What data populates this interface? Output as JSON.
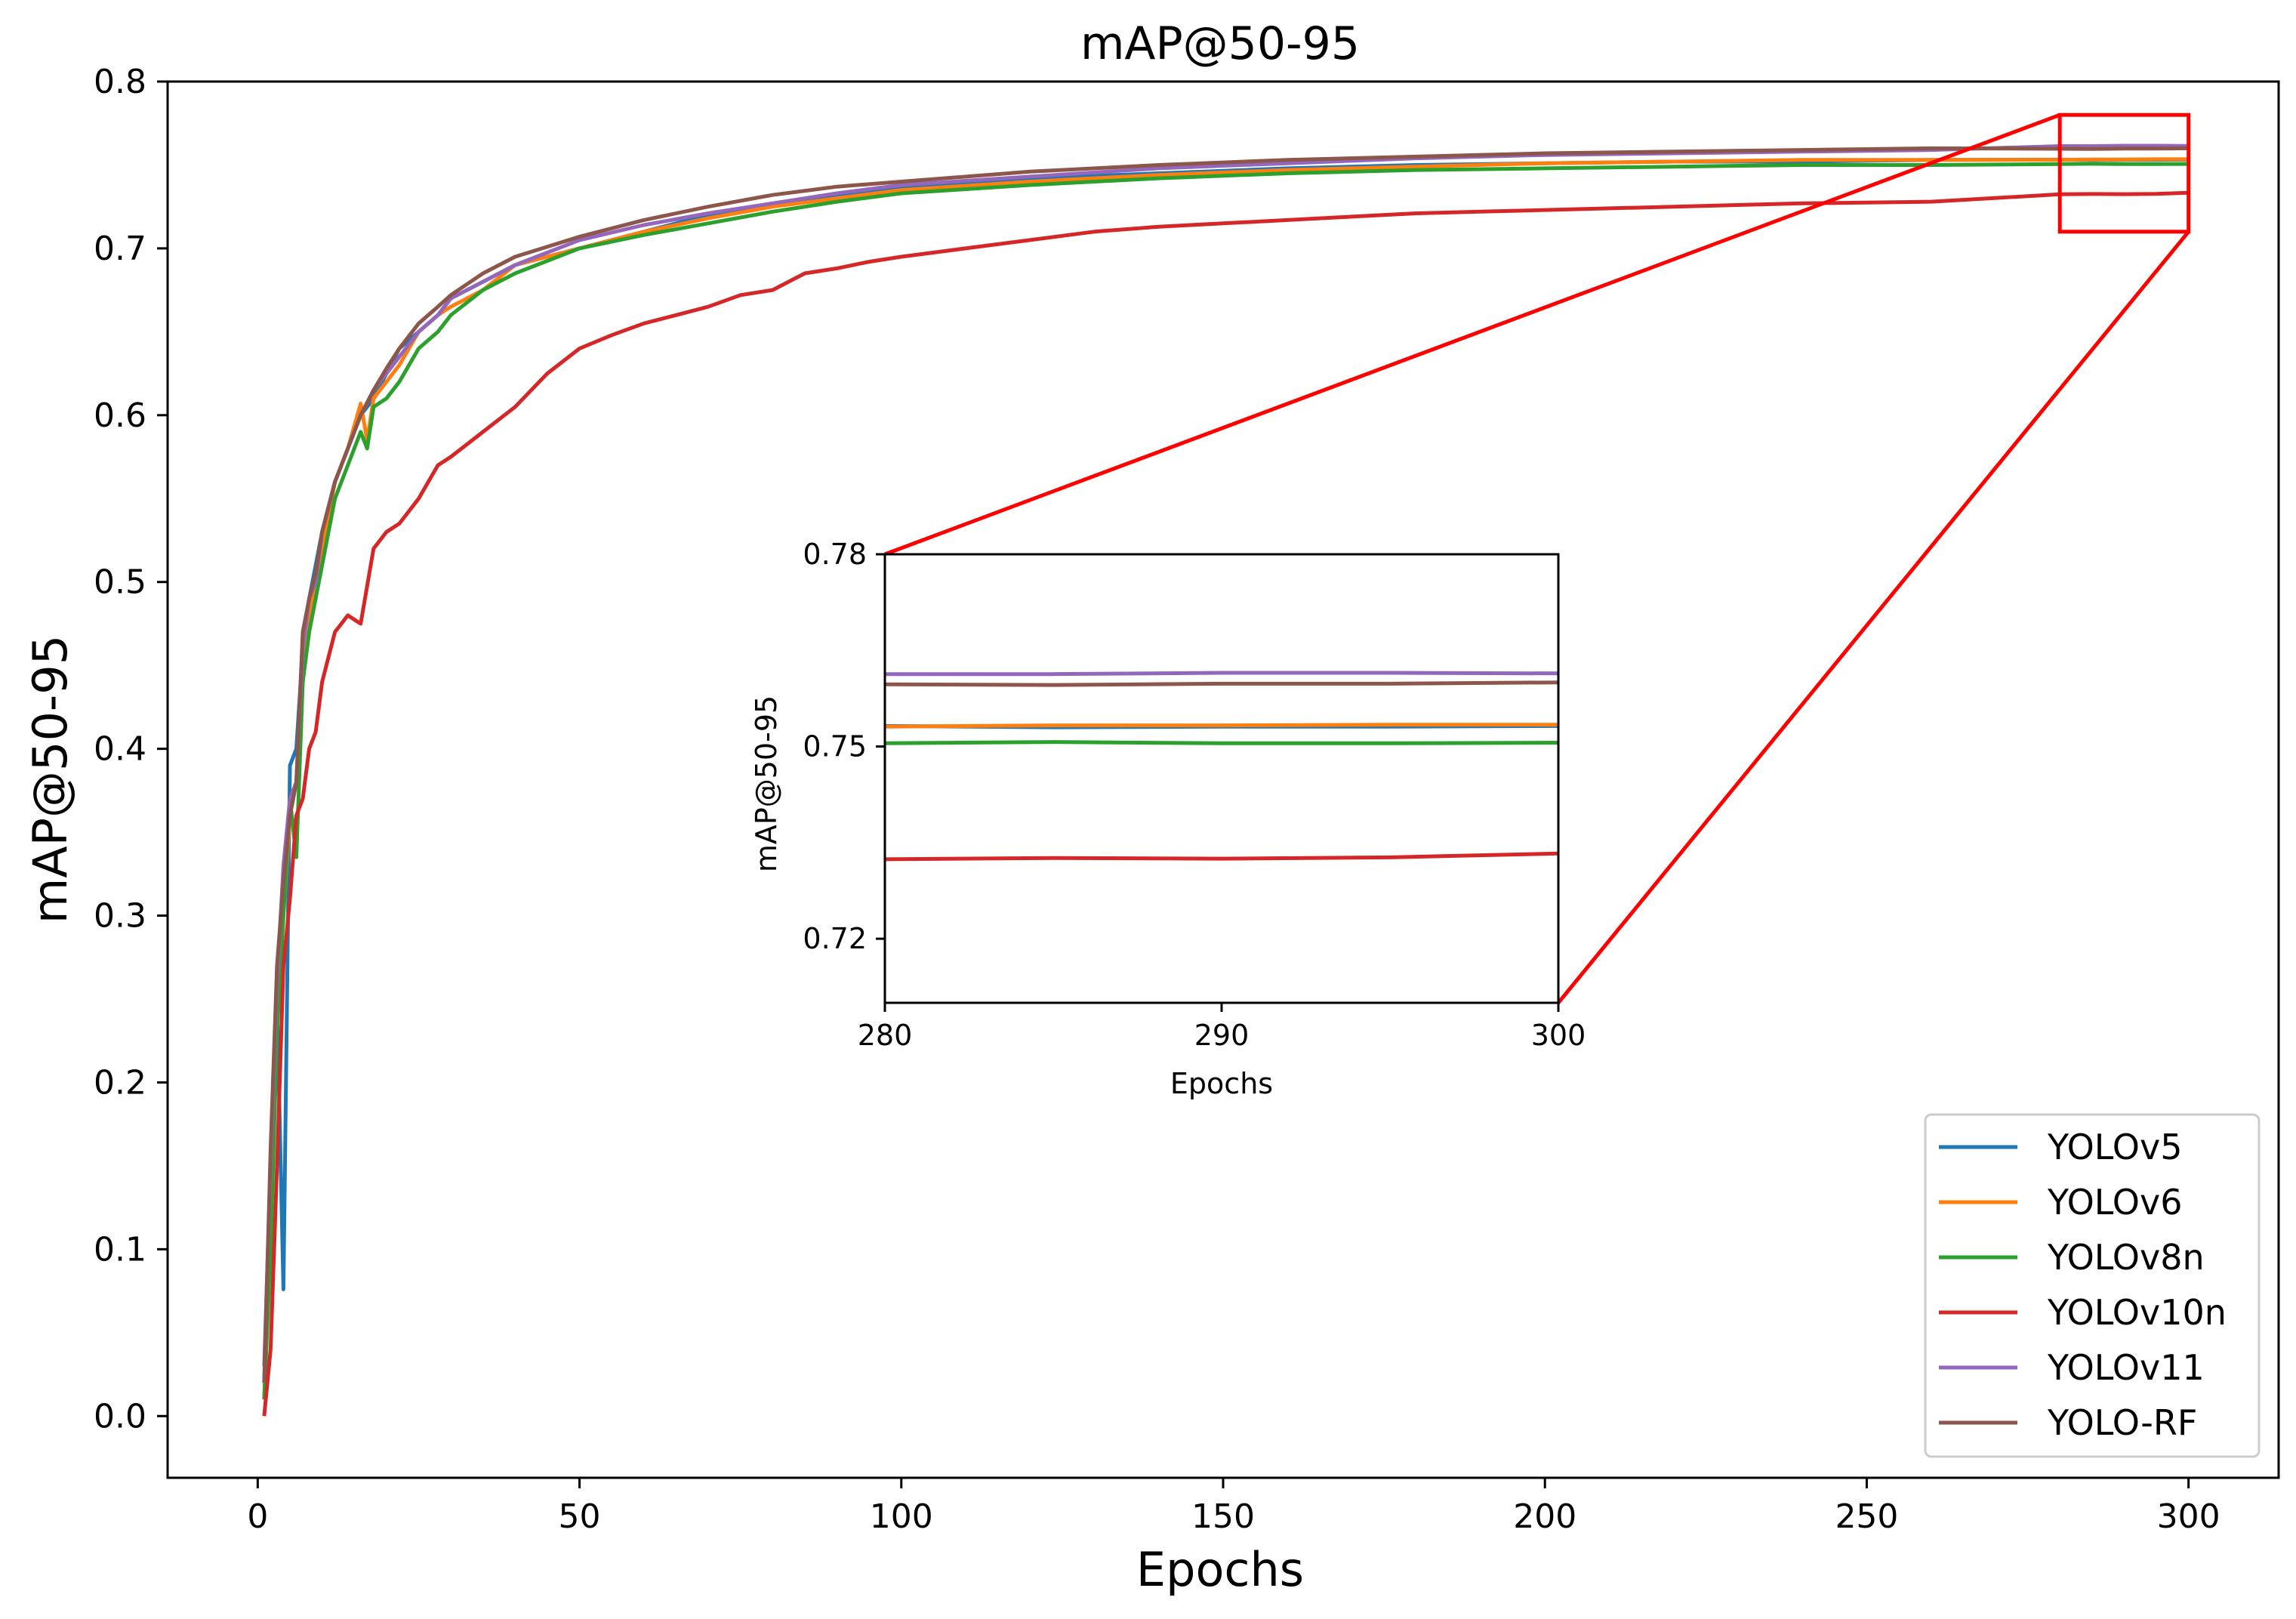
{
  "chart_data": {
    "type": "line",
    "title": "mAP@50-95",
    "xlabel": "Epochs",
    "ylabel": "mAP@50-95",
    "xlim": [
      -14,
      314
    ],
    "ylim": [
      -0.037,
      0.8
    ],
    "xticks": [
      0,
      50,
      100,
      150,
      200,
      250,
      300
    ],
    "yticks": [
      0.0,
      0.1,
      0.2,
      0.3,
      0.4,
      0.5,
      0.6,
      0.7,
      0.8
    ],
    "grid": false,
    "legend_position": "lower-right",
    "series": [
      {
        "name": "YOLOv5",
        "color": "#1f77b4",
        "points": [
          [
            1,
            0.02
          ],
          [
            2,
            0.14
          ],
          [
            3,
            0.25
          ],
          [
            4,
            0.076
          ],
          [
            5,
            0.39
          ],
          [
            6,
            0.4
          ],
          [
            7,
            0.46
          ],
          [
            8,
            0.49
          ],
          [
            9,
            0.51
          ],
          [
            10,
            0.53
          ],
          [
            12,
            0.56
          ],
          [
            14,
            0.58
          ],
          [
            16,
            0.6
          ],
          [
            18,
            0.61
          ],
          [
            20,
            0.625
          ],
          [
            22,
            0.64
          ],
          [
            25,
            0.65
          ],
          [
            28,
            0.66
          ],
          [
            30,
            0.67
          ],
          [
            35,
            0.68
          ],
          [
            40,
            0.69
          ],
          [
            50,
            0.7
          ],
          [
            60,
            0.71
          ],
          [
            70,
            0.72
          ],
          [
            80,
            0.727
          ],
          [
            90,
            0.732
          ],
          [
            100,
            0.737
          ],
          [
            120,
            0.742
          ],
          [
            140,
            0.745
          ],
          [
            160,
            0.748
          ],
          [
            180,
            0.75
          ],
          [
            200,
            0.751
          ],
          [
            220,
            0.752
          ],
          [
            240,
            0.752
          ],
          [
            260,
            0.753
          ],
          [
            280,
            0.7532
          ],
          [
            285,
            0.753
          ],
          [
            290,
            0.7531
          ],
          [
            295,
            0.7531
          ],
          [
            300,
            0.7532
          ]
        ]
      },
      {
        "name": "YOLOv6",
        "color": "#ff7f0e",
        "points": [
          [
            1,
            0.01
          ],
          [
            2,
            0.12
          ],
          [
            3,
            0.24
          ],
          [
            4,
            0.3
          ],
          [
            5,
            0.36
          ],
          [
            6,
            0.38
          ],
          [
            7,
            0.45
          ],
          [
            8,
            0.48
          ],
          [
            9,
            0.5
          ],
          [
            10,
            0.52
          ],
          [
            12,
            0.56
          ],
          [
            14,
            0.58
          ],
          [
            16,
            0.607
          ],
          [
            17,
            0.585
          ],
          [
            18,
            0.61
          ],
          [
            20,
            0.62
          ],
          [
            22,
            0.63
          ],
          [
            25,
            0.65
          ],
          [
            28,
            0.66
          ],
          [
            30,
            0.665
          ],
          [
            35,
            0.675
          ],
          [
            40,
            0.69
          ],
          [
            50,
            0.7
          ],
          [
            60,
            0.71
          ],
          [
            70,
            0.718
          ],
          [
            80,
            0.725
          ],
          [
            90,
            0.73
          ],
          [
            100,
            0.735
          ],
          [
            120,
            0.74
          ],
          [
            140,
            0.744
          ],
          [
            160,
            0.747
          ],
          [
            180,
            0.749
          ],
          [
            200,
            0.751
          ],
          [
            220,
            0.752
          ],
          [
            240,
            0.753
          ],
          [
            260,
            0.753
          ],
          [
            280,
            0.7531
          ],
          [
            285,
            0.7533
          ],
          [
            290,
            0.7533
          ],
          [
            295,
            0.7534
          ],
          [
            300,
            0.7534
          ]
        ]
      },
      {
        "name": "YOLOv8n",
        "color": "#2ca02c",
        "points": [
          [
            1,
            0.01
          ],
          [
            2,
            0.1
          ],
          [
            3,
            0.23
          ],
          [
            4,
            0.3
          ],
          [
            5,
            0.37
          ],
          [
            6,
            0.335
          ],
          [
            7,
            0.44
          ],
          [
            8,
            0.47
          ],
          [
            9,
            0.49
          ],
          [
            10,
            0.51
          ],
          [
            12,
            0.55
          ],
          [
            14,
            0.57
          ],
          [
            16,
            0.59
          ],
          [
            17,
            0.58
          ],
          [
            18,
            0.605
          ],
          [
            20,
            0.61
          ],
          [
            22,
            0.62
          ],
          [
            25,
            0.64
          ],
          [
            28,
            0.65
          ],
          [
            30,
            0.66
          ],
          [
            35,
            0.675
          ],
          [
            40,
            0.685
          ],
          [
            50,
            0.7
          ],
          [
            60,
            0.708
          ],
          [
            70,
            0.715
          ],
          [
            80,
            0.722
          ],
          [
            90,
            0.728
          ],
          [
            100,
            0.733
          ],
          [
            120,
            0.738
          ],
          [
            140,
            0.742
          ],
          [
            160,
            0.745
          ],
          [
            180,
            0.747
          ],
          [
            200,
            0.748
          ],
          [
            220,
            0.749
          ],
          [
            240,
            0.75
          ],
          [
            260,
            0.75
          ],
          [
            280,
            0.7505
          ],
          [
            285,
            0.7507
          ],
          [
            290,
            0.7505
          ],
          [
            295,
            0.7505
          ],
          [
            300,
            0.7506
          ]
        ]
      },
      {
        "name": "YOLOv10n",
        "color": "#d62728",
        "points": [
          [
            1,
            0.0
          ],
          [
            2,
            0.04
          ],
          [
            3,
            0.15
          ],
          [
            4,
            0.27
          ],
          [
            5,
            0.31
          ],
          [
            6,
            0.36
          ],
          [
            7,
            0.37
          ],
          [
            8,
            0.4
          ],
          [
            9,
            0.41
          ],
          [
            10,
            0.44
          ],
          [
            12,
            0.47
          ],
          [
            14,
            0.48
          ],
          [
            16,
            0.475
          ],
          [
            18,
            0.52
          ],
          [
            20,
            0.53
          ],
          [
            22,
            0.535
          ],
          [
            25,
            0.55
          ],
          [
            28,
            0.57
          ],
          [
            30,
            0.575
          ],
          [
            35,
            0.59
          ],
          [
            40,
            0.605
          ],
          [
            45,
            0.625
          ],
          [
            50,
            0.64
          ],
          [
            55,
            0.648
          ],
          [
            60,
            0.655
          ],
          [
            65,
            0.66
          ],
          [
            70,
            0.665
          ],
          [
            75,
            0.672
          ],
          [
            80,
            0.675
          ],
          [
            85,
            0.685
          ],
          [
            90,
            0.688
          ],
          [
            95,
            0.692
          ],
          [
            100,
            0.695
          ],
          [
            110,
            0.7
          ],
          [
            120,
            0.705
          ],
          [
            130,
            0.71
          ],
          [
            140,
            0.713
          ],
          [
            150,
            0.715
          ],
          [
            160,
            0.717
          ],
          [
            170,
            0.719
          ],
          [
            180,
            0.721
          ],
          [
            190,
            0.722
          ],
          [
            200,
            0.723
          ],
          [
            220,
            0.725
          ],
          [
            240,
            0.727
          ],
          [
            260,
            0.728
          ],
          [
            280,
            0.7324
          ],
          [
            285,
            0.7326
          ],
          [
            290,
            0.7325
          ],
          [
            295,
            0.7327
          ],
          [
            300,
            0.7333
          ]
        ]
      },
      {
        "name": "YOLOv11",
        "color": "#9467bd",
        "points": [
          [
            1,
            0.03
          ],
          [
            2,
            0.15
          ],
          [
            3,
            0.26
          ],
          [
            4,
            0.33
          ],
          [
            5,
            0.37
          ],
          [
            6,
            0.38
          ],
          [
            7,
            0.46
          ],
          [
            8,
            0.49
          ],
          [
            9,
            0.5
          ],
          [
            10,
            0.53
          ],
          [
            12,
            0.56
          ],
          [
            14,
            0.58
          ],
          [
            16,
            0.6
          ],
          [
            18,
            0.615
          ],
          [
            20,
            0.625
          ],
          [
            22,
            0.635
          ],
          [
            25,
            0.65
          ],
          [
            28,
            0.66
          ],
          [
            30,
            0.67
          ],
          [
            35,
            0.68
          ],
          [
            40,
            0.69
          ],
          [
            50,
            0.705
          ],
          [
            60,
            0.714
          ],
          [
            70,
            0.721
          ],
          [
            80,
            0.727
          ],
          [
            90,
            0.733
          ],
          [
            100,
            0.738
          ],
          [
            120,
            0.743
          ],
          [
            140,
            0.748
          ],
          [
            160,
            0.751
          ],
          [
            180,
            0.754
          ],
          [
            200,
            0.756
          ],
          [
            220,
            0.757
          ],
          [
            240,
            0.758
          ],
          [
            260,
            0.759
          ],
          [
            280,
            0.7613
          ],
          [
            285,
            0.7613
          ],
          [
            290,
            0.7615
          ],
          [
            295,
            0.7615
          ],
          [
            300,
            0.7614
          ]
        ]
      },
      {
        "name": "YOLO-RF",
        "color": "#8c564b",
        "points": [
          [
            1,
            0.02
          ],
          [
            2,
            0.16
          ],
          [
            3,
            0.27
          ],
          [
            4,
            0.32
          ],
          [
            5,
            0.36
          ],
          [
            6,
            0.38
          ],
          [
            7,
            0.47
          ],
          [
            8,
            0.49
          ],
          [
            9,
            0.505
          ],
          [
            10,
            0.53
          ],
          [
            12,
            0.56
          ],
          [
            14,
            0.58
          ],
          [
            16,
            0.6
          ],
          [
            18,
            0.615
          ],
          [
            20,
            0.628
          ],
          [
            22,
            0.64
          ],
          [
            25,
            0.655
          ],
          [
            28,
            0.665
          ],
          [
            30,
            0.672
          ],
          [
            35,
            0.685
          ],
          [
            40,
            0.695
          ],
          [
            50,
            0.707
          ],
          [
            60,
            0.717
          ],
          [
            70,
            0.725
          ],
          [
            80,
            0.732
          ],
          [
            90,
            0.737
          ],
          [
            100,
            0.74
          ],
          [
            120,
            0.746
          ],
          [
            140,
            0.75
          ],
          [
            160,
            0.753
          ],
          [
            180,
            0.755
          ],
          [
            200,
            0.757
          ],
          [
            220,
            0.758
          ],
          [
            240,
            0.759
          ],
          [
            260,
            0.76
          ],
          [
            280,
            0.7597
          ],
          [
            285,
            0.7596
          ],
          [
            290,
            0.7598
          ],
          [
            295,
            0.7598
          ],
          [
            300,
            0.76
          ]
        ]
      }
    ],
    "inset": {
      "xlabel": "Epochs",
      "ylabel": "mAP@50-95",
      "xlim": [
        280,
        300
      ],
      "ylim": [
        0.71,
        0.78
      ],
      "xticks": [
        280,
        290,
        300
      ],
      "yticks": [
        0.72,
        0.75,
        0.78
      ],
      "zoom_region": {
        "x": [
          280,
          300
        ],
        "y": [
          0.71,
          0.78
        ]
      },
      "zoom_color": "#ff0000"
    }
  }
}
